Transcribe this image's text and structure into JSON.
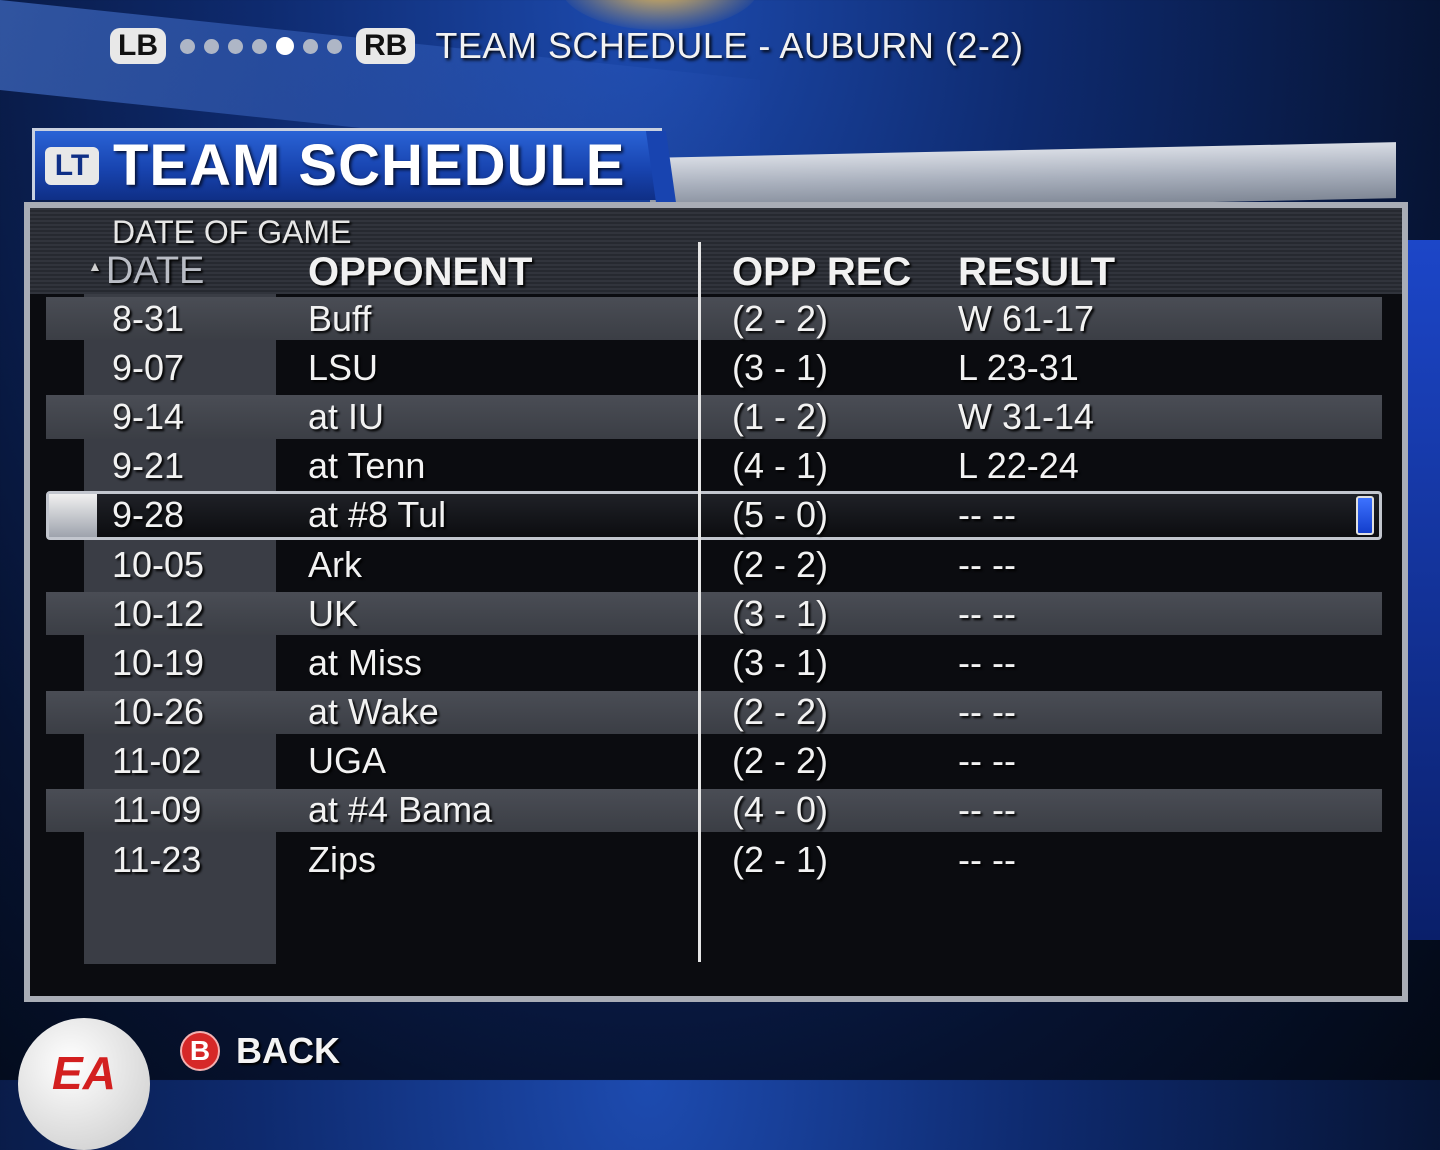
{
  "nav": {
    "left_bumper": "LB",
    "right_bumper": "RB",
    "page_count": 7,
    "active_page_index": 4,
    "title": "TEAM SCHEDULE - AUBURN (2-2)"
  },
  "header": {
    "trigger_badge": "LT",
    "title": "TEAM SCHEDULE"
  },
  "columns": {
    "sort_sublabel": "DATE OF GAME",
    "date": "DATE",
    "opponent": "OPPONENT",
    "opp_rec": "OPP REC",
    "result": "RESULT"
  },
  "games": [
    {
      "date": "8-31",
      "opponent": "Buff",
      "opp_rec": "(2 - 2)",
      "result": "W 61-17"
    },
    {
      "date": "9-07",
      "opponent": "LSU",
      "opp_rec": "(3 - 1)",
      "result": "L 23-31"
    },
    {
      "date": "9-14",
      "opponent": "at IU",
      "opp_rec": "(1 - 2)",
      "result": "W 31-14"
    },
    {
      "date": "9-21",
      "opponent": "at Tenn",
      "opp_rec": "(4 - 1)",
      "result": "L 22-24"
    },
    {
      "date": "9-28",
      "opponent": "at #8 Tul",
      "opp_rec": "(5 - 0)",
      "result": "-- --"
    },
    {
      "date": "10-05",
      "opponent": "Ark",
      "opp_rec": "(2 - 2)",
      "result": "-- --"
    },
    {
      "date": "10-12",
      "opponent": "UK",
      "opp_rec": "(3 - 1)",
      "result": "-- --"
    },
    {
      "date": "10-19",
      "opponent": "at Miss",
      "opp_rec": "(3 - 1)",
      "result": "-- --"
    },
    {
      "date": "10-26",
      "opponent": "at Wake",
      "opp_rec": "(2 - 2)",
      "result": "-- --"
    },
    {
      "date": "11-02",
      "opponent": "UGA",
      "opp_rec": "(2 - 2)",
      "result": "-- --"
    },
    {
      "date": "11-09",
      "opponent": "at #4 Bama",
      "opp_rec": "(4 - 0)",
      "result": "-- --"
    },
    {
      "date": "11-23",
      "opponent": "Zips",
      "opp_rec": "(2 - 1)",
      "result": "-- --"
    }
  ],
  "selected_game_index": 4,
  "footer": {
    "logo_text": "EA",
    "back_button_glyph": "B",
    "back_label": "BACK"
  }
}
